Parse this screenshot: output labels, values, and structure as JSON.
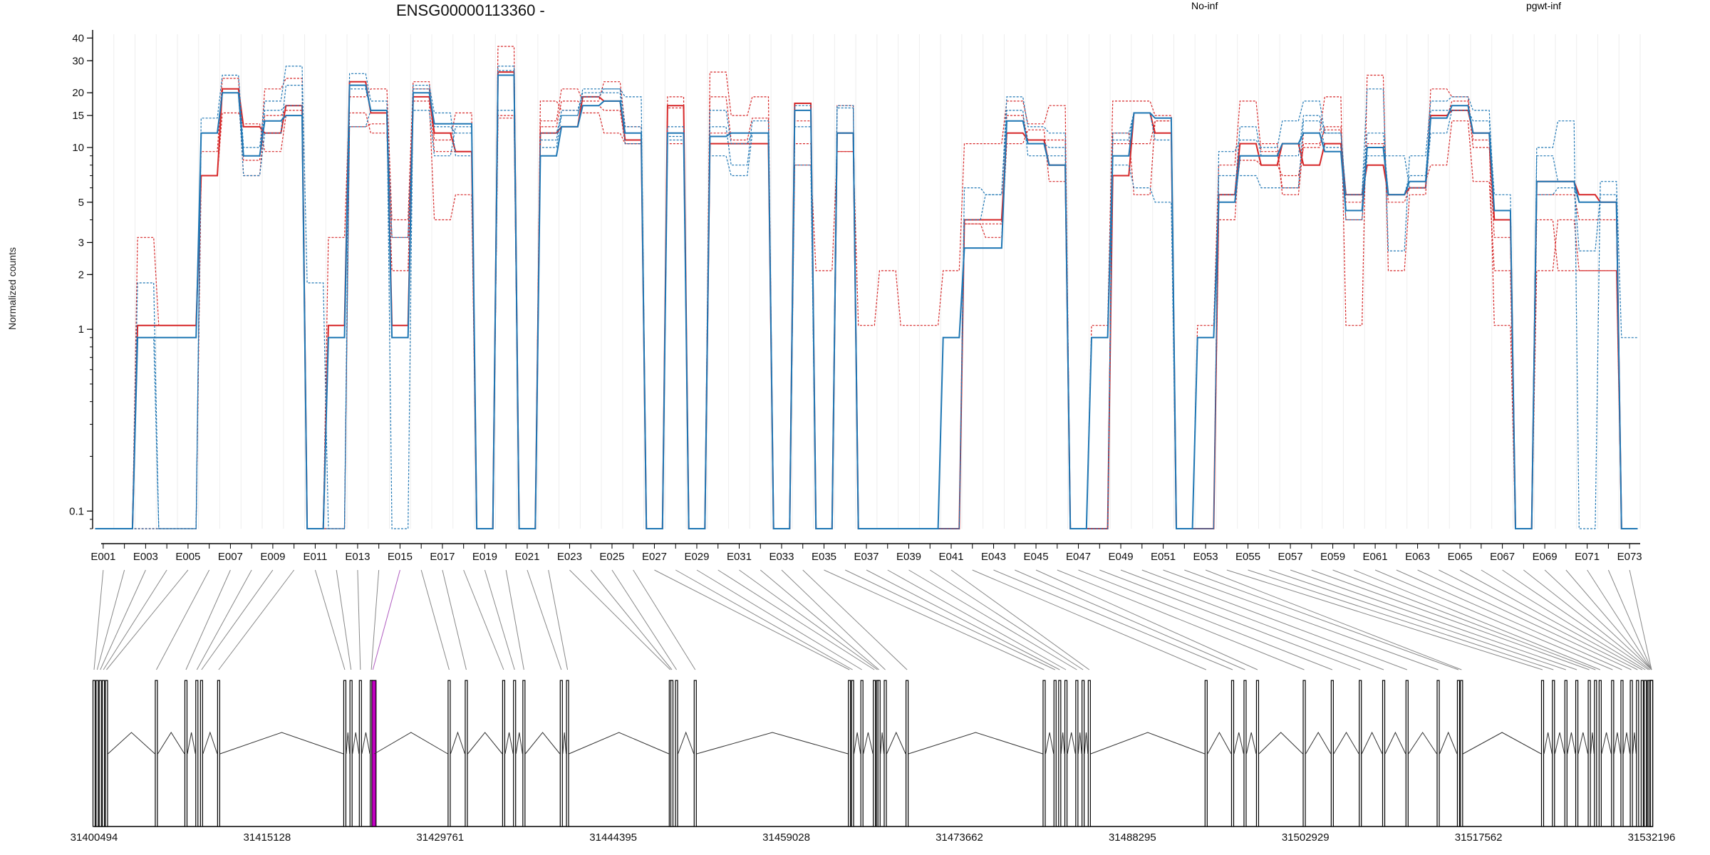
{
  "chart_data": {
    "type": "line",
    "title": "ENSG00000113360 -",
    "ylabel": "Normalized counts",
    "yscale": "log",
    "ylim": [
      0.08,
      42
    ],
    "y_ticks": [
      "0.1",
      "1",
      "2",
      "3",
      "5",
      "10",
      "15",
      "20",
      "30",
      "40"
    ],
    "y_tick_values": [
      0.1,
      1,
      2,
      3,
      5,
      10,
      15,
      20,
      30,
      40
    ],
    "legend": [
      {
        "label": "No-inf",
        "color": "#d62728"
      },
      {
        "label": "pgwt-inf",
        "color": "#1f77b4"
      }
    ],
    "exons": [
      "E001",
      "E002",
      "E003",
      "E004",
      "E005",
      "E006",
      "E007",
      "E008",
      "E009",
      "E010",
      "E011",
      "E012",
      "E013",
      "E014",
      "E015",
      "E016",
      "E017",
      "E018",
      "E019",
      "E020",
      "E021",
      "E022",
      "E023",
      "E024",
      "E025",
      "E026",
      "E027",
      "E028",
      "E029",
      "E030",
      "E031",
      "E032",
      "E033",
      "E034",
      "E035",
      "E036",
      "E037",
      "E038",
      "E039",
      "E040",
      "E041",
      "E042",
      "E043",
      "E044",
      "E045",
      "E046",
      "E047",
      "E048",
      "E049",
      "E050",
      "E051",
      "E052",
      "E053",
      "E054",
      "E055",
      "E056",
      "E057",
      "E058",
      "E059",
      "E060",
      "E061",
      "E062",
      "E063",
      "E064",
      "E065",
      "E066",
      "E067",
      "E068",
      "E069",
      "E070",
      "E071",
      "E072",
      "E073"
    ],
    "exon_labels_shown": [
      "E001",
      "E003",
      "E005",
      "E007",
      "E009",
      "E011",
      "E013",
      "E015",
      "E017",
      "E019",
      "E021",
      "E023",
      "E025",
      "E027",
      "E029",
      "E031",
      "E033",
      "E035",
      "E037",
      "E039",
      "E041",
      "E043",
      "E045",
      "E047",
      "E049",
      "E051",
      "E053",
      "E055",
      "E057",
      "E059",
      "E061",
      "E063",
      "E065",
      "E067",
      "E069",
      "E071",
      "E073"
    ],
    "series": [
      {
        "name": "No-inf",
        "group": "no-inf",
        "style": "solid",
        "values": [
          0.08,
          0.08,
          1.05,
          1.05,
          1.05,
          7,
          21,
          13,
          12,
          17,
          0.08,
          1.05,
          23,
          15.5,
          1.05,
          19,
          12,
          9.5,
          0.08,
          26,
          0.08,
          12,
          13,
          19,
          18,
          11,
          0.08,
          17,
          0.08,
          10.5,
          10.5,
          10.5,
          0.08,
          17.5,
          0.08,
          12,
          0.08,
          0.08,
          0.08,
          0.08,
          0.08,
          4,
          4,
          12,
          11,
          8,
          0.08,
          0.08,
          7,
          15.5,
          12,
          0.08,
          0.08,
          5.5,
          10.5,
          8,
          10.5,
          8,
          10.5,
          5.5,
          8,
          5.5,
          6,
          15,
          16,
          12,
          4,
          0.08,
          6.5,
          6.5,
          5.5,
          5,
          0.08
        ]
      },
      {
        "name": "No-inf",
        "group": "no-inf",
        "style": "dashed",
        "values": [
          0.08,
          0.08,
          3.2,
          1.05,
          1.05,
          9.5,
          24,
          8.5,
          21,
          24,
          0.08,
          3.2,
          19,
          21,
          4,
          23,
          11,
          15.5,
          0.08,
          36,
          0.08,
          14,
          21,
          18,
          23,
          13,
          0.08,
          19,
          0.08,
          26,
          15,
          19,
          0.08,
          8,
          2.1,
          9.5,
          1.05,
          2.1,
          1.05,
          1.05,
          2.1,
          10.5,
          10.5,
          18,
          13.5,
          17,
          0.08,
          1.05,
          18,
          18,
          15,
          0.08,
          1.05,
          8,
          18,
          9.5,
          6,
          12,
          19,
          1.05,
          25,
          2.1,
          5.5,
          21,
          19,
          11,
          1.05,
          0.08,
          2.1,
          4,
          2.1,
          2.1,
          0.08
        ]
      },
      {
        "name": "No-inf",
        "group": "no-inf",
        "style": "dashed",
        "values": [
          0.08,
          0.08,
          0.08,
          0.08,
          0.08,
          7,
          15.5,
          13.5,
          9.5,
          15,
          0.08,
          0.08,
          13,
          13.5,
          3.2,
          18,
          4,
          5.5,
          0.08,
          15,
          0.08,
          18,
          16,
          15.5,
          12,
          10.5,
          0.08,
          10.5,
          0.08,
          19,
          11,
          14.5,
          0.08,
          10.5,
          0.08,
          17,
          0.08,
          0.08,
          0.08,
          0.08,
          0.08,
          3.8,
          3.2,
          10.5,
          12.5,
          6.5,
          0.08,
          0.08,
          12,
          5.5,
          14,
          0.08,
          0.08,
          4,
          10.5,
          10.5,
          5.5,
          10.5,
          12.5,
          4,
          10.5,
          5.5,
          6.5,
          8,
          14,
          6.5,
          2.1,
          0.08,
          4,
          2.1,
          2.1,
          2.1,
          0.08
        ]
      },
      {
        "name": "No-inf",
        "group": "no-inf",
        "style": "dashed",
        "values": [
          0.08,
          0.08,
          0.08,
          0.08,
          0.08,
          7,
          20,
          7,
          15,
          16,
          0.08,
          0.08,
          15.5,
          12,
          2.1,
          21,
          9.5,
          9.5,
          0.08,
          14.5,
          0.08,
          13,
          18,
          17,
          16,
          10.5,
          0.08,
          16.5,
          0.08,
          12,
          12,
          12,
          0.08,
          14,
          0.08,
          9.5,
          0.08,
          0.08,
          0.08,
          0.08,
          0.08,
          3.8,
          3.8,
          15,
          11,
          11,
          0.08,
          0.08,
          10.5,
          10.5,
          14,
          0.08,
          0.08,
          5,
          8.5,
          8,
          7,
          10,
          13,
          5,
          10,
          5,
          6,
          14.5,
          18,
          10,
          3.2,
          0.08,
          5.5,
          5.5,
          4,
          4,
          0.08
        ]
      },
      {
        "name": "pgwt-inf",
        "group": "pgwt-inf",
        "style": "solid",
        "values": [
          0.08,
          0.08,
          0.9,
          0.9,
          0.9,
          12,
          20,
          9,
          14,
          15,
          0.08,
          0.9,
          22,
          16,
          0.9,
          20,
          13.5,
          13.5,
          0.08,
          25,
          0.08,
          9,
          13,
          17,
          18,
          12,
          0.08,
          12,
          0.08,
          11.5,
          12,
          12,
          0.08,
          16,
          0.08,
          12,
          0.08,
          0.08,
          0.08,
          0.08,
          0.9,
          2.8,
          2.8,
          14,
          10.5,
          8,
          0.08,
          0.9,
          9,
          15.5,
          14.5,
          0.08,
          0.9,
          5,
          9,
          9,
          10.5,
          12,
          9.5,
          4.5,
          10,
          5.5,
          6.5,
          14.5,
          17,
          12,
          4.5,
          0.08,
          6.5,
          6.5,
          5,
          5,
          0.08
        ]
      },
      {
        "name": "pgwt-inf",
        "group": "pgwt-inf",
        "style": "dashed",
        "values": [
          0.08,
          0.08,
          1.8,
          0.08,
          0.08,
          14.5,
          25,
          10,
          18,
          28,
          1.8,
          0.08,
          25.5,
          18,
          0.08,
          22,
          15.5,
          9,
          0.08,
          28,
          0.08,
          12,
          15,
          21,
          21,
          19,
          0.08,
          13,
          0.08,
          16,
          10.5,
          12,
          0.08,
          17,
          0.08,
          16.5,
          0.08,
          0.08,
          0.08,
          0.08,
          0.08,
          4,
          5.5,
          19,
          13,
          12,
          0.08,
          0.08,
          12,
          15.5,
          14.5,
          0.08,
          0.08,
          9.5,
          11,
          10,
          14,
          18,
          12,
          5.5,
          21,
          2.7,
          9,
          18,
          19,
          16,
          4.5,
          0.08,
          10,
          14,
          0.08,
          6.5,
          0.9
        ]
      },
      {
        "name": "pgwt-inf",
        "group": "pgwt-inf",
        "style": "dashed",
        "values": [
          0.08,
          0.08,
          0.08,
          0.08,
          0.08,
          12,
          20,
          7,
          12,
          22,
          0.08,
          0.08,
          13,
          16,
          3.2,
          16,
          9,
          13,
          0.08,
          16,
          0.08,
          11,
          16,
          20,
          20,
          10.5,
          0.08,
          11.5,
          0.08,
          9,
          7,
          12,
          0.08,
          8,
          0.08,
          12,
          0.08,
          0.08,
          0.08,
          0.08,
          0.08,
          6,
          5.5,
          16,
          9,
          9,
          0.08,
          0.08,
          8,
          6,
          5,
          0.08,
          0.08,
          7,
          7,
          6,
          6,
          14,
          10,
          4,
          9,
          9,
          6,
          12,
          16,
          12,
          4.5,
          0.08,
          9,
          6.5,
          2.7,
          5.5,
          0.08
        ]
      },
      {
        "name": "pgwt-inf",
        "group": "pgwt-inf",
        "style": "dashed",
        "values": [
          0.08,
          0.08,
          0.9,
          0.08,
          0.08,
          12,
          20,
          9,
          16,
          17,
          0.08,
          0.9,
          21,
          16,
          0.9,
          21,
          13,
          12,
          0.08,
          26.5,
          0.08,
          10,
          15,
          19,
          21,
          13,
          0.08,
          11,
          0.08,
          13,
          8,
          14,
          0.08,
          13,
          0.08,
          17,
          0.08,
          0.08,
          0.08,
          0.08,
          0.9,
          2.8,
          2.8,
          14,
          10.5,
          10,
          0.08,
          0.9,
          11,
          15.5,
          11,
          0.08,
          0.9,
          5.5,
          13,
          9,
          9,
          15,
          12,
          5.5,
          12,
          5.5,
          7,
          16,
          16,
          14,
          5.5,
          0.08,
          5.5,
          6,
          5,
          5,
          0.08
        ]
      }
    ],
    "genomic_axis": {
      "tick_labels": [
        "31400494",
        "31415128",
        "31429761",
        "31444395",
        "31459028",
        "31473662",
        "31488295",
        "31502929",
        "31517562",
        "31532196"
      ]
    }
  }
}
